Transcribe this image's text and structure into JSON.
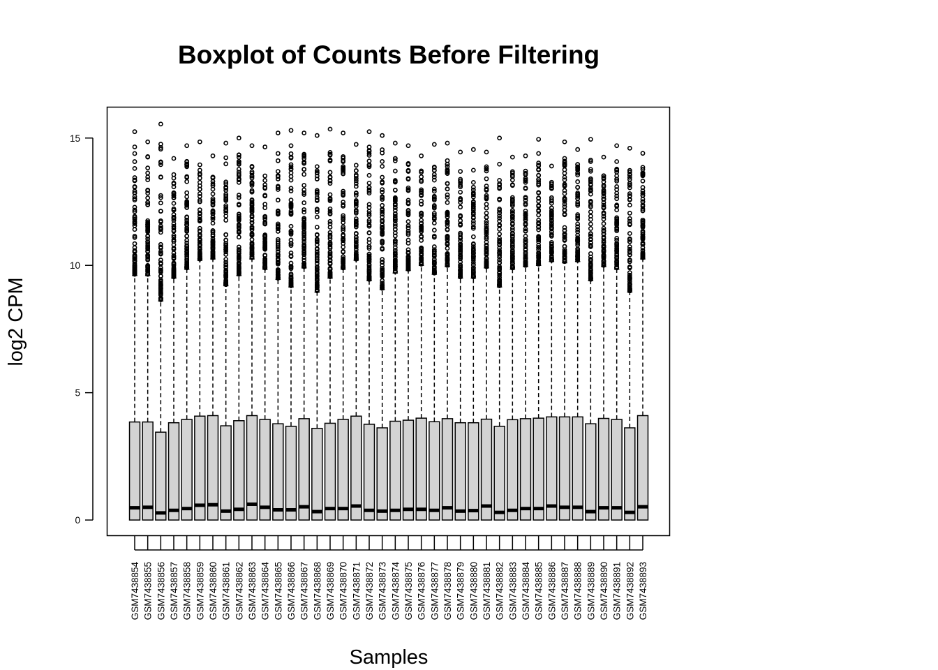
{
  "chart_data": {
    "type": "boxplot",
    "title": "Boxplot of Counts Before Filtering",
    "xlabel": "Samples",
    "ylabel": "log2 CPM",
    "ylim": [
      -0.6,
      16.2
    ],
    "yticks": [
      0,
      5,
      10,
      15
    ],
    "box_fill": "#d3d3d3",
    "whisker_style": "dashed",
    "outlier_marker": "open-circle",
    "categories": [
      "GSM7438854",
      "GSM7438855",
      "GSM7438856",
      "GSM7438857",
      "GSM7438858",
      "GSM7438859",
      "GSM7438860",
      "GSM7438861",
      "GSM7438862",
      "GSM7438863",
      "GSM7438864",
      "GSM7438865",
      "GSM7438866",
      "GSM7438867",
      "GSM7438868",
      "GSM7438869",
      "GSM7438870",
      "GSM7438871",
      "GSM7438872",
      "GSM7438873",
      "GSM7438874",
      "GSM7438875",
      "GSM7438876",
      "GSM7438877",
      "GSM7438878",
      "GSM7438879",
      "GSM7438880",
      "GSM7438881",
      "GSM7438882",
      "GSM7438883",
      "GSM7438884",
      "GSM7438885",
      "GSM7438886",
      "GSM7438887",
      "GSM7438888",
      "GSM7438889",
      "GSM7438890",
      "GSM7438891",
      "GSM7438892",
      "GSM7438893"
    ],
    "q1": [
      0,
      0,
      0,
      0,
      0,
      0,
      0,
      0,
      0,
      0,
      0,
      0,
      0,
      0,
      0,
      0,
      0,
      0,
      0,
      0,
      0,
      0,
      0,
      0,
      0,
      0,
      0,
      0,
      0,
      0,
      0,
      0,
      0,
      0,
      0,
      0,
      0,
      0,
      0,
      0
    ],
    "median": [
      0.48,
      0.5,
      0.28,
      0.38,
      0.45,
      0.58,
      0.6,
      0.35,
      0.42,
      0.62,
      0.5,
      0.4,
      0.4,
      0.52,
      0.33,
      0.45,
      0.45,
      0.55,
      0.38,
      0.35,
      0.38,
      0.42,
      0.42,
      0.38,
      0.48,
      0.35,
      0.37,
      0.55,
      0.3,
      0.38,
      0.45,
      0.45,
      0.55,
      0.5,
      0.5,
      0.33,
      0.48,
      0.48,
      0.3,
      0.52
    ],
    "q3": [
      3.85,
      3.85,
      3.45,
      3.82,
      3.95,
      4.08,
      4.1,
      3.7,
      3.9,
      4.1,
      3.95,
      3.78,
      3.68,
      3.98,
      3.6,
      3.8,
      3.95,
      4.08,
      3.76,
      3.62,
      3.88,
      3.92,
      4.0,
      3.86,
      3.98,
      3.82,
      3.82,
      3.96,
      3.68,
      3.94,
      3.98,
      4.0,
      4.05,
      4.05,
      4.05,
      3.78,
      3.99,
      3.95,
      3.62,
      4.1
    ],
    "whisker_low": [
      0,
      0,
      0,
      0,
      0,
      0,
      0,
      0,
      0,
      0,
      0,
      0,
      0,
      0,
      0,
      0,
      0,
      0,
      0,
      0,
      0,
      0,
      0,
      0,
      0,
      0,
      0,
      0,
      0,
      0,
      0,
      0,
      0,
      0,
      0,
      0,
      0,
      0,
      0,
      0
    ],
    "whisker_high": [
      9.6,
      9.6,
      8.6,
      9.5,
      9.85,
      10.2,
      10.25,
      9.2,
      9.6,
      10.25,
      9.85,
      9.45,
      9.15,
      9.9,
      8.95,
      9.5,
      9.85,
      10.2,
      9.4,
      9.05,
      9.7,
      9.8,
      10.0,
      9.65,
      9.95,
      9.5,
      9.5,
      9.9,
      9.15,
      9.85,
      9.95,
      10.0,
      10.15,
      10.1,
      10.15,
      9.4,
      9.95,
      9.85,
      8.95,
      10.25
    ],
    "outlier_max": [
      15.25,
      14.85,
      15.55,
      14.2,
      14.7,
      14.85,
      14.3,
      14.8,
      15.0,
      14.7,
      14.65,
      15.2,
      15.3,
      15.2,
      15.1,
      15.35,
      15.2,
      14.75,
      15.25,
      15.1,
      14.8,
      14.7,
      14.3,
      14.75,
      14.8,
      14.45,
      14.55,
      14.45,
      15.0,
      14.25,
      14.3,
      14.95,
      13.9,
      14.85,
      14.55,
      14.95,
      14.25,
      14.7,
      14.6,
      14.4
    ]
  }
}
